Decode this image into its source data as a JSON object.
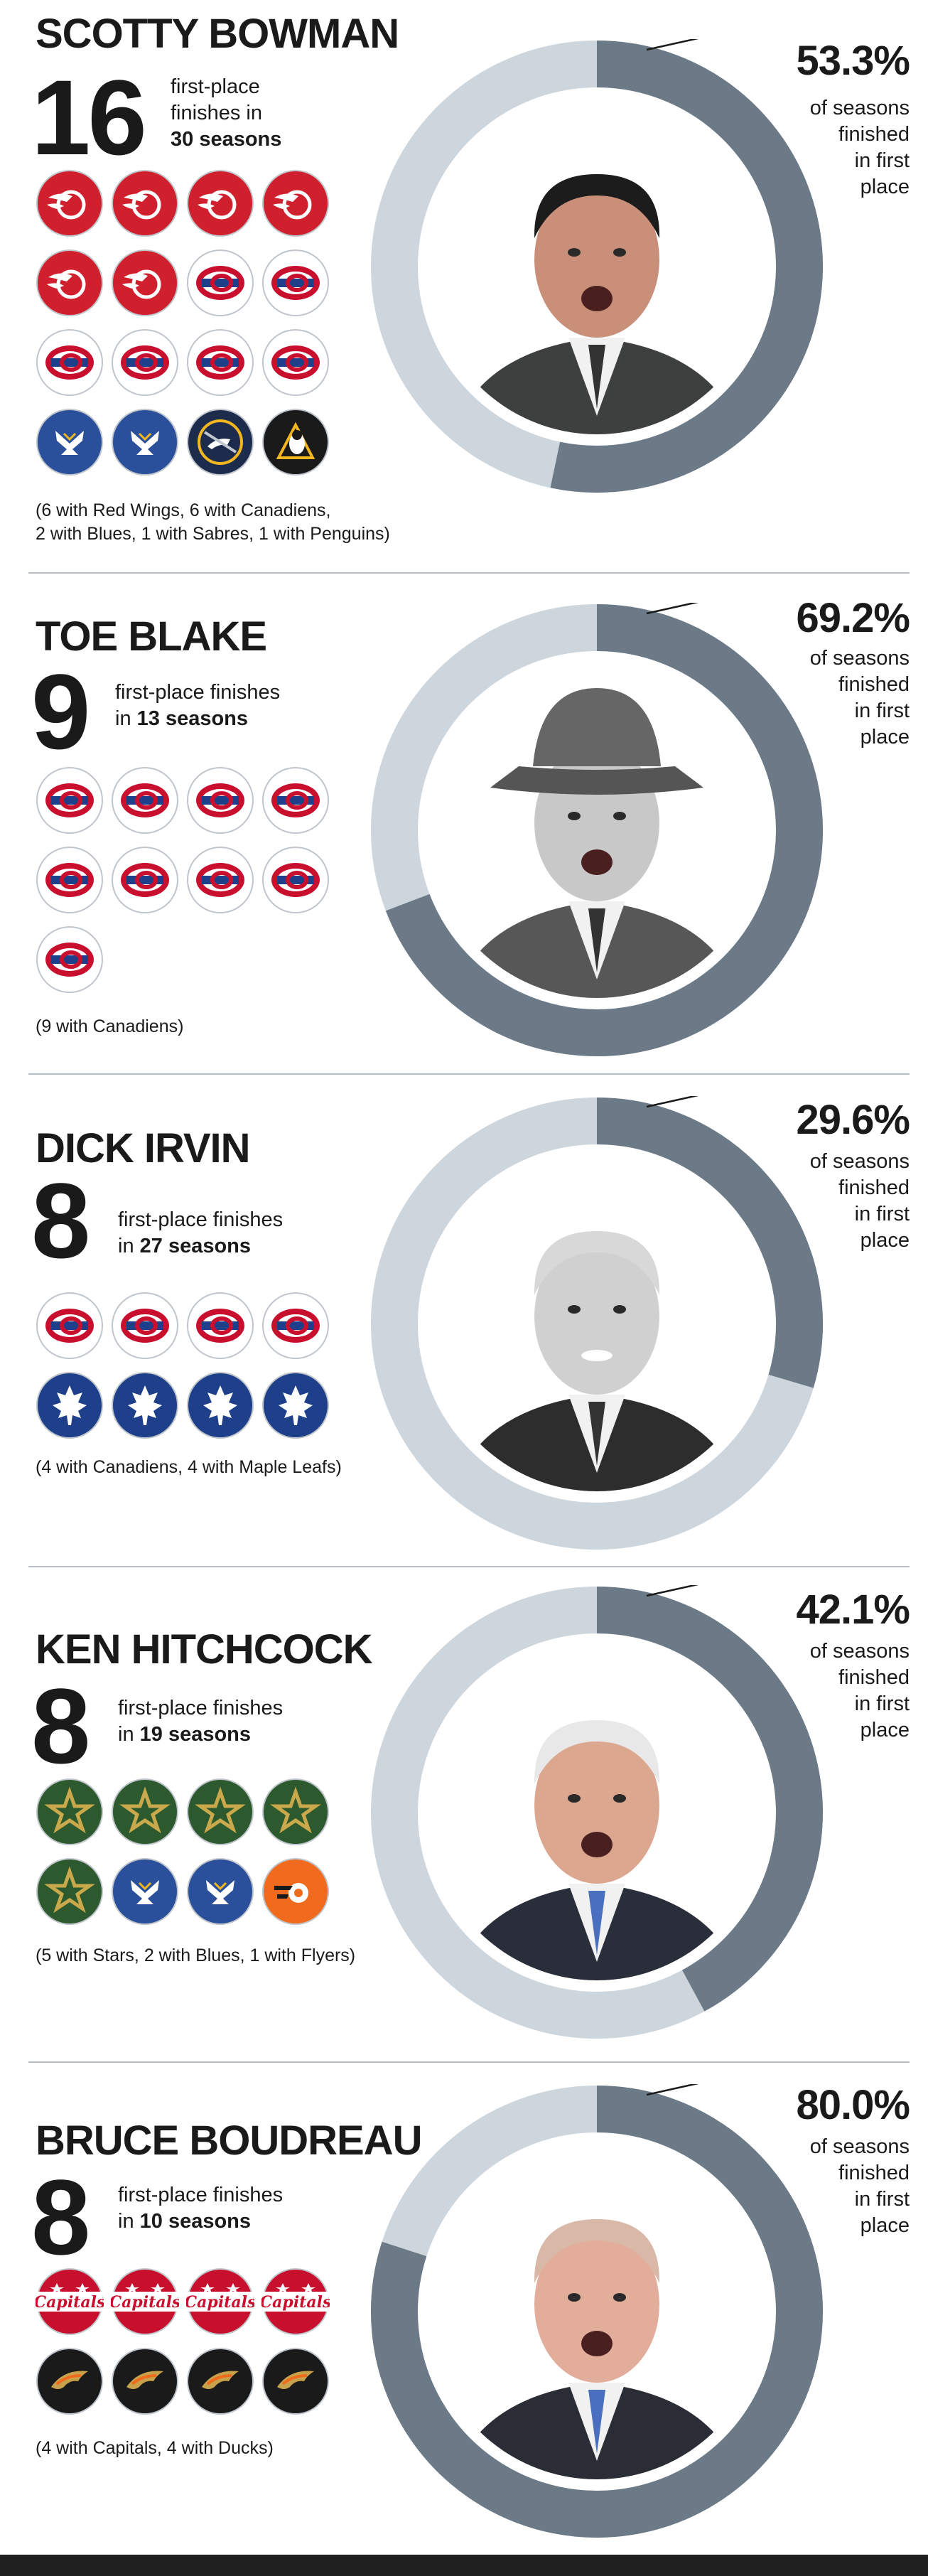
{
  "coaches": [
    {
      "name": "SCOTTY BOWMAN",
      "count": "16",
      "desc_line1": "first-place",
      "desc_line2": "finishes in",
      "desc_bold": "30 seasons",
      "note_line1": "(6 with Red Wings, 6 with Canadiens,",
      "note_line2": "2 with Blues, 1 with Sabres, 1 with Penguins)",
      "pct_label": "53.3%",
      "pct_text": [
        "of seasons",
        "finished",
        "in first",
        "place"
      ],
      "logos": [
        "red-wings",
        "red-wings",
        "red-wings",
        "red-wings",
        "red-wings",
        "red-wings",
        "canadiens",
        "canadiens",
        "canadiens",
        "canadiens",
        "canadiens",
        "canadiens",
        "blues",
        "blues",
        "sabres",
        "penguins"
      ]
    },
    {
      "name": "TOE BLAKE",
      "count": "9",
      "desc_line1": "first-place finishes",
      "desc_line2": "in",
      "desc_bold": "13 seasons",
      "note_line1": "(9 with Canadiens)",
      "note_line2": "",
      "pct_label": "69.2%",
      "pct_text": [
        "of seasons",
        "finished",
        "in first",
        "place"
      ],
      "logos": [
        "canadiens",
        "canadiens",
        "canadiens",
        "canadiens",
        "canadiens",
        "canadiens",
        "canadiens",
        "canadiens",
        "canadiens"
      ]
    },
    {
      "name": "DICK IRVIN",
      "count": "8",
      "desc_line1": "first-place finishes",
      "desc_line2": "in",
      "desc_bold": "27 seasons",
      "note_line1": "(4 with Canadiens, 4 with Maple Leafs)",
      "note_line2": "",
      "pct_label": "29.6%",
      "pct_text": [
        "of seasons",
        "finished",
        "in first",
        "place"
      ],
      "logos": [
        "canadiens",
        "canadiens",
        "canadiens",
        "canadiens",
        "maple-leafs",
        "maple-leafs",
        "maple-leafs",
        "maple-leafs"
      ]
    },
    {
      "name": "KEN HITCHCOCK",
      "count": "8",
      "desc_line1": "first-place finishes",
      "desc_line2": "in",
      "desc_bold": "19 seasons",
      "note_line1": "(5 with Stars, 2 with Blues, 1 with Flyers)",
      "note_line2": "",
      "pct_label": "42.1%",
      "pct_text": [
        "of seasons",
        "finished",
        "in first",
        "place"
      ],
      "logos": [
        "stars",
        "stars",
        "stars",
        "stars",
        "stars",
        "blues",
        "blues",
        "flyers"
      ]
    },
    {
      "name": "BRUCE BOUDREAU",
      "count": "8",
      "desc_line1": "first-place finishes",
      "desc_line2": "in",
      "desc_bold": "10 seasons",
      "note_line1": "(4 with Capitals, 4 with Ducks)",
      "note_line2": "",
      "pct_label": "80.0%",
      "pct_text": [
        "of seasons",
        "finished",
        "in first",
        "place"
      ],
      "logos": [
        "capitals",
        "capitals",
        "capitals",
        "capitals",
        "ducks",
        "ducks",
        "ducks",
        "ducks"
      ]
    }
  ],
  "colors": {
    "ring_filled": "#6b7a86",
    "ring_empty": "#cdd5dd",
    "red_wings": "#d0202e",
    "canadiens": "#ffffff",
    "blues": "#2a4f9b",
    "sabres": "#1d2b4c",
    "penguins": "#1a1a1a",
    "maple_leafs": "#1e3f8a",
    "stars": "#2c5a2e",
    "flyers": "#f06b1e",
    "capitals": "#c8102e",
    "ducks": "#1a1a1a"
  },
  "chart_data": [
    {
      "type": "pie",
      "title": "SCOTTY BOWMAN",
      "values": [
        53.3,
        46.7
      ],
      "first_place_finishes": 16,
      "seasons": 30
    },
    {
      "type": "pie",
      "title": "TOE BLAKE",
      "values": [
        69.2,
        30.8
      ],
      "first_place_finishes": 9,
      "seasons": 13
    },
    {
      "type": "pie",
      "title": "DICK IRVIN",
      "values": [
        29.6,
        70.4
      ],
      "first_place_finishes": 8,
      "seasons": 27
    },
    {
      "type": "pie",
      "title": "KEN HITCHCOCK",
      "values": [
        42.1,
        57.9
      ],
      "first_place_finishes": 8,
      "seasons": 19
    },
    {
      "type": "pie",
      "title": "BRUCE BOUDREAU",
      "values": [
        80.0,
        20.0
      ],
      "first_place_finishes": 8,
      "seasons": 10
    }
  ]
}
